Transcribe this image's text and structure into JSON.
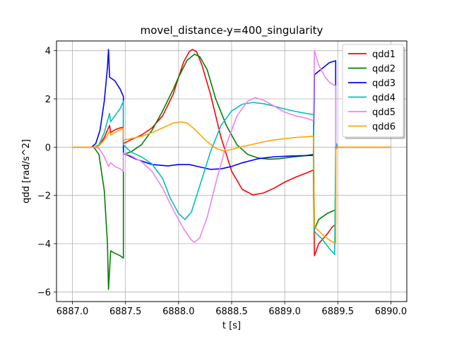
{
  "chart_data": {
    "type": "line",
    "title": "movel_distance-y=400_singularity",
    "xlabel": "t [s]",
    "ylabel": "qdd [rad/s^2]",
    "xlim": [
      6886.85,
      6890.15
    ],
    "ylim": [
      -6.4,
      4.4
    ],
    "xticks": [
      6887.0,
      6887.5,
      6888.0,
      6888.5,
      6889.0,
      6889.5,
      6890.0
    ],
    "xtick_labels": [
      "6887.0",
      "6887.5",
      "6888.0",
      "6888.5",
      "6889.0",
      "6889.5",
      "6890.0"
    ],
    "yticks": [
      -6,
      -4,
      -2,
      0,
      2,
      4
    ],
    "ytick_labels": [
      "−6",
      "−4",
      "−2",
      "0",
      "2",
      "4"
    ],
    "grid": true,
    "legend_position": "top-right",
    "series": [
      {
        "name": "qdd1",
        "color": "#ff0000",
        "points": [
          [
            6887.0,
            0
          ],
          [
            6887.2,
            0
          ],
          [
            6887.25,
            0.05
          ],
          [
            6887.3,
            0.4
          ],
          [
            6887.35,
            0.9
          ],
          [
            6887.36,
            0.6
          ],
          [
            6887.4,
            0.72
          ],
          [
            6887.45,
            0.8
          ],
          [
            6887.48,
            0.82
          ],
          [
            6887.48,
            0.15
          ],
          [
            6887.55,
            0.3
          ],
          [
            6887.65,
            0.5
          ],
          [
            6887.75,
            0.8
          ],
          [
            6887.85,
            1.3
          ],
          [
            6887.95,
            2.2
          ],
          [
            6888.0,
            2.9
          ],
          [
            6888.05,
            3.55
          ],
          [
            6888.1,
            3.95
          ],
          [
            6888.13,
            4.05
          ],
          [
            6888.17,
            3.95
          ],
          [
            6888.22,
            3.4
          ],
          [
            6888.3,
            2.2
          ],
          [
            6888.4,
            0.4
          ],
          [
            6888.5,
            -1.0
          ],
          [
            6888.6,
            -1.75
          ],
          [
            6888.7,
            -1.98
          ],
          [
            6888.8,
            -1.9
          ],
          [
            6888.9,
            -1.7
          ],
          [
            6889.0,
            -1.45
          ],
          [
            6889.1,
            -1.25
          ],
          [
            6889.2,
            -1.08
          ],
          [
            6889.27,
            -0.95
          ],
          [
            6889.28,
            -4.5
          ],
          [
            6889.32,
            -4.0
          ],
          [
            6889.4,
            -3.6
          ],
          [
            6889.45,
            -3.3
          ],
          [
            6889.48,
            -3.2
          ],
          [
            6889.48,
            -0.05
          ],
          [
            6889.5,
            0
          ],
          [
            6890.0,
            0
          ]
        ]
      },
      {
        "name": "qdd2",
        "color": "#008000",
        "points": [
          [
            6887.0,
            0
          ],
          [
            6887.2,
            0
          ],
          [
            6887.25,
            -0.3
          ],
          [
            6887.3,
            -1.8
          ],
          [
            6887.33,
            -4.0
          ],
          [
            6887.34,
            -5.9
          ],
          [
            6887.36,
            -4.3
          ],
          [
            6887.4,
            -4.4
          ],
          [
            6887.45,
            -4.5
          ],
          [
            6887.48,
            -4.6
          ],
          [
            6887.48,
            -0.3
          ],
          [
            6887.55,
            -0.2
          ],
          [
            6887.65,
            0.1
          ],
          [
            6887.75,
            0.7
          ],
          [
            6887.85,
            1.5
          ],
          [
            6887.95,
            2.4
          ],
          [
            6888.0,
            2.9
          ],
          [
            6888.08,
            3.6
          ],
          [
            6888.15,
            3.85
          ],
          [
            6888.2,
            3.75
          ],
          [
            6888.27,
            3.2
          ],
          [
            6888.35,
            2.0
          ],
          [
            6888.45,
            0.9
          ],
          [
            6888.55,
            0.1
          ],
          [
            6888.65,
            -0.3
          ],
          [
            6888.75,
            -0.45
          ],
          [
            6888.85,
            -0.5
          ],
          [
            6888.95,
            -0.48
          ],
          [
            6889.05,
            -0.42
          ],
          [
            6889.2,
            -0.35
          ],
          [
            6889.27,
            -0.3
          ],
          [
            6889.28,
            -3.4
          ],
          [
            6889.32,
            -3.0
          ],
          [
            6889.4,
            -2.75
          ],
          [
            6889.45,
            -2.65
          ],
          [
            6889.48,
            -2.6
          ],
          [
            6889.48,
            -0.05
          ],
          [
            6889.5,
            0
          ],
          [
            6890.0,
            0
          ]
        ]
      },
      {
        "name": "qdd3",
        "color": "#0000ff",
        "points": [
          [
            6887.0,
            0
          ],
          [
            6887.18,
            0
          ],
          [
            6887.22,
            0.15
          ],
          [
            6887.26,
            0.7
          ],
          [
            6887.3,
            1.9
          ],
          [
            6887.33,
            3.3
          ],
          [
            6887.34,
            4.05
          ],
          [
            6887.35,
            2.9
          ],
          [
            6887.4,
            2.75
          ],
          [
            6887.45,
            2.4
          ],
          [
            6887.48,
            2.1
          ],
          [
            6887.48,
            -0.25
          ],
          [
            6887.6,
            -0.5
          ],
          [
            6887.75,
            -0.72
          ],
          [
            6887.9,
            -0.78
          ],
          [
            6888.0,
            -0.72
          ],
          [
            6888.1,
            -0.72
          ],
          [
            6888.2,
            -0.82
          ],
          [
            6888.3,
            -0.92
          ],
          [
            6888.4,
            -0.9
          ],
          [
            6888.5,
            -0.8
          ],
          [
            6888.6,
            -0.65
          ],
          [
            6888.75,
            -0.48
          ],
          [
            6888.9,
            -0.4
          ],
          [
            6889.05,
            -0.37
          ],
          [
            6889.2,
            -0.35
          ],
          [
            6889.27,
            -0.34
          ],
          [
            6889.28,
            3.0
          ],
          [
            6889.35,
            3.25
          ],
          [
            6889.42,
            3.5
          ],
          [
            6889.48,
            3.58
          ],
          [
            6889.48,
            0.1
          ],
          [
            6889.5,
            0
          ],
          [
            6890.0,
            0
          ]
        ]
      },
      {
        "name": "qdd4",
        "color": "#00bfbf",
        "points": [
          [
            6887.0,
            0
          ],
          [
            6887.2,
            0
          ],
          [
            6887.25,
            0.1
          ],
          [
            6887.3,
            0.6
          ],
          [
            6887.35,
            1.4
          ],
          [
            6887.36,
            1.05
          ],
          [
            6887.4,
            1.3
          ],
          [
            6887.45,
            1.6
          ],
          [
            6887.48,
            1.9
          ],
          [
            6887.48,
            0.1
          ],
          [
            6887.55,
            -0.2
          ],
          [
            6887.65,
            -0.4
          ],
          [
            6887.75,
            -0.7
          ],
          [
            6887.85,
            -1.3
          ],
          [
            6887.92,
            -2.1
          ],
          [
            6888.0,
            -2.75
          ],
          [
            6888.06,
            -3.0
          ],
          [
            6888.12,
            -2.7
          ],
          [
            6888.2,
            -1.6
          ],
          [
            6888.3,
            -0.2
          ],
          [
            6888.4,
            0.9
          ],
          [
            6888.5,
            1.5
          ],
          [
            6888.6,
            1.78
          ],
          [
            6888.7,
            1.85
          ],
          [
            6888.8,
            1.8
          ],
          [
            6888.9,
            1.7
          ],
          [
            6889.0,
            1.58
          ],
          [
            6889.1,
            1.48
          ],
          [
            6889.2,
            1.4
          ],
          [
            6889.27,
            1.35
          ],
          [
            6889.28,
            -3.5
          ],
          [
            6889.35,
            -3.8
          ],
          [
            6889.42,
            -4.2
          ],
          [
            6889.47,
            -4.45
          ],
          [
            6889.48,
            0.2
          ],
          [
            6889.5,
            0
          ],
          [
            6890.0,
            0
          ]
        ]
      },
      {
        "name": "qdd5",
        "color": "#ee82ee",
        "points": [
          [
            6887.0,
            0
          ],
          [
            6887.2,
            0
          ],
          [
            6887.25,
            -0.05
          ],
          [
            6887.3,
            -0.4
          ],
          [
            6887.34,
            -0.8
          ],
          [
            6887.36,
            -0.65
          ],
          [
            6887.4,
            -0.8
          ],
          [
            6887.45,
            -0.9
          ],
          [
            6887.48,
            -1.0
          ],
          [
            6887.48,
            -0.25
          ],
          [
            6887.55,
            -0.35
          ],
          [
            6887.65,
            -0.6
          ],
          [
            6887.75,
            -1.0
          ],
          [
            6887.85,
            -1.7
          ],
          [
            6887.95,
            -2.6
          ],
          [
            6888.05,
            -3.4
          ],
          [
            6888.12,
            -3.85
          ],
          [
            6888.15,
            -3.95
          ],
          [
            6888.2,
            -3.75
          ],
          [
            6888.27,
            -2.9
          ],
          [
            6888.35,
            -1.5
          ],
          [
            6888.45,
            0.1
          ],
          [
            6888.55,
            1.3
          ],
          [
            6888.65,
            1.9
          ],
          [
            6888.72,
            2.05
          ],
          [
            6888.8,
            1.95
          ],
          [
            6888.9,
            1.7
          ],
          [
            6889.0,
            1.45
          ],
          [
            6889.1,
            1.3
          ],
          [
            6889.2,
            1.2
          ],
          [
            6889.27,
            1.1
          ],
          [
            6889.28,
            4.0
          ],
          [
            6889.32,
            3.4
          ],
          [
            6889.38,
            2.9
          ],
          [
            6889.43,
            2.65
          ],
          [
            6889.48,
            2.55
          ],
          [
            6889.48,
            0.05
          ],
          [
            6889.5,
            0
          ],
          [
            6890.0,
            0
          ]
        ]
      },
      {
        "name": "qdd6",
        "color": "#ffa500",
        "points": [
          [
            6887.0,
            0
          ],
          [
            6887.2,
            0
          ],
          [
            6887.25,
            0.05
          ],
          [
            6887.3,
            0.3
          ],
          [
            6887.35,
            0.65
          ],
          [
            6887.36,
            0.5
          ],
          [
            6887.4,
            0.6
          ],
          [
            6887.45,
            0.72
          ],
          [
            6887.48,
            0.78
          ],
          [
            6887.48,
            0.3
          ],
          [
            6887.55,
            0.35
          ],
          [
            6887.65,
            0.45
          ],
          [
            6887.75,
            0.6
          ],
          [
            6887.85,
            0.8
          ],
          [
            6887.95,
            1.0
          ],
          [
            6888.02,
            1.05
          ],
          [
            6888.08,
            1.0
          ],
          [
            6888.15,
            0.75
          ],
          [
            6888.25,
            0.3
          ],
          [
            6888.35,
            -0.05
          ],
          [
            6888.42,
            -0.15
          ],
          [
            6888.5,
            -0.1
          ],
          [
            6888.6,
            0.02
          ],
          [
            6888.7,
            0.12
          ],
          [
            6888.8,
            0.22
          ],
          [
            6888.9,
            0.3
          ],
          [
            6889.0,
            0.35
          ],
          [
            6889.1,
            0.4
          ],
          [
            6889.2,
            0.43
          ],
          [
            6889.27,
            0.45
          ],
          [
            6889.28,
            -3.3
          ],
          [
            6889.35,
            -3.6
          ],
          [
            6889.42,
            -3.85
          ],
          [
            6889.48,
            -4.0
          ],
          [
            6889.48,
            -0.1
          ],
          [
            6889.5,
            0
          ],
          [
            6890.0,
            0
          ]
        ]
      }
    ]
  }
}
